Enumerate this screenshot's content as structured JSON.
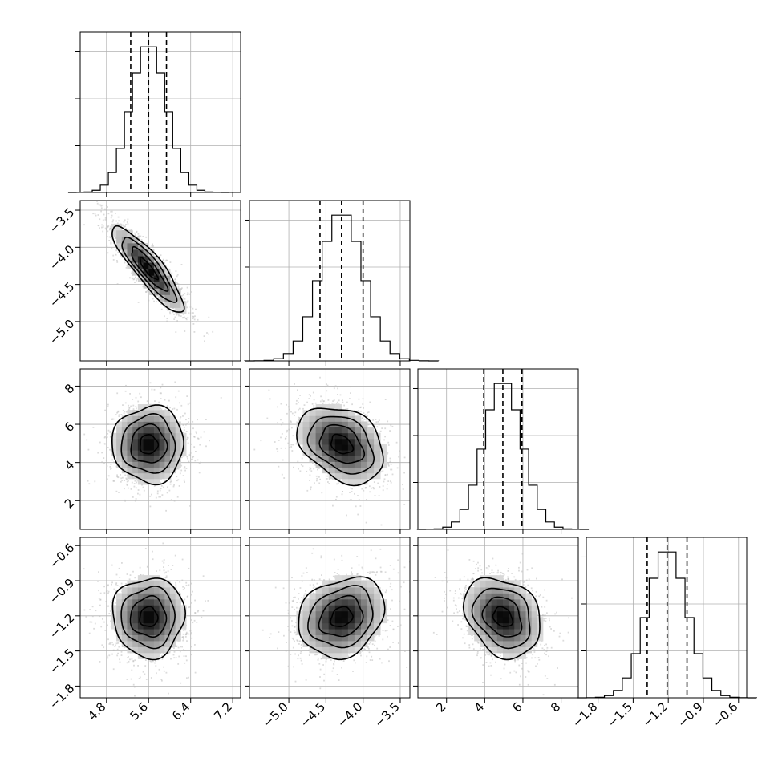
{
  "chart_data": {
    "type": "corner",
    "parameters": [
      {
        "mean": 5.6,
        "std": 0.34,
        "q16": 5.26,
        "q50": 5.6,
        "q84": 5.94,
        "range": [
          4.3,
          7.35
        ],
        "ticks": [
          4.8,
          5.6,
          6.4,
          7.2
        ],
        "tick_labels": [
          "4.8",
          "5.6",
          "6.4",
          "7.2"
        ]
      },
      {
        "mean": -4.29,
        "std": 0.29,
        "q16": -4.58,
        "q50": -4.29,
        "q84": -4.0,
        "range": [
          -5.53,
          -3.37
        ],
        "ticks": [
          -5.0,
          -4.5,
          -4.0,
          -3.5
        ],
        "tick_labels": [
          "−5.0",
          "−4.5",
          "−4.0",
          "−3.5"
        ]
      },
      {
        "mean": 4.95,
        "std": 1.0,
        "q16": 3.95,
        "q50": 4.95,
        "q84": 5.95,
        "range": [
          0.5,
          8.9
        ],
        "ticks": [
          2,
          4,
          6,
          8
        ],
        "tick_labels": [
          "2",
          "4",
          "6",
          "8"
        ]
      },
      {
        "mean": -1.21,
        "std": 0.17,
        "q16": -1.38,
        "q50": -1.21,
        "q84": -1.04,
        "range": [
          -1.9,
          -0.53
        ],
        "ticks": [
          -1.8,
          -1.5,
          -1.2,
          -0.9,
          -0.6
        ],
        "tick_labels": [
          "−1.8",
          "−1.5",
          "−1.2",
          "−0.9",
          "−0.6"
        ]
      }
    ],
    "correlations": [
      [
        1.0,
        -0.88,
        0.0,
        0.0
      ],
      [
        -0.88,
        1.0,
        -0.32,
        0.2
      ],
      [
        0.0,
        -0.32,
        1.0,
        -0.25
      ],
      [
        0.0,
        0.2,
        -0.25,
        1.0
      ]
    ],
    "histogram_bins": 20,
    "histogram_y_ticks": 3,
    "contour_levels_sigma": [
      0.5,
      1.0,
      1.5,
      2.0
    ],
    "quantile_lines": "dashed",
    "grid": true,
    "colors": {
      "line": "#000000",
      "scatter": "#bdbdbd",
      "grid": "#b0b0b0"
    }
  }
}
